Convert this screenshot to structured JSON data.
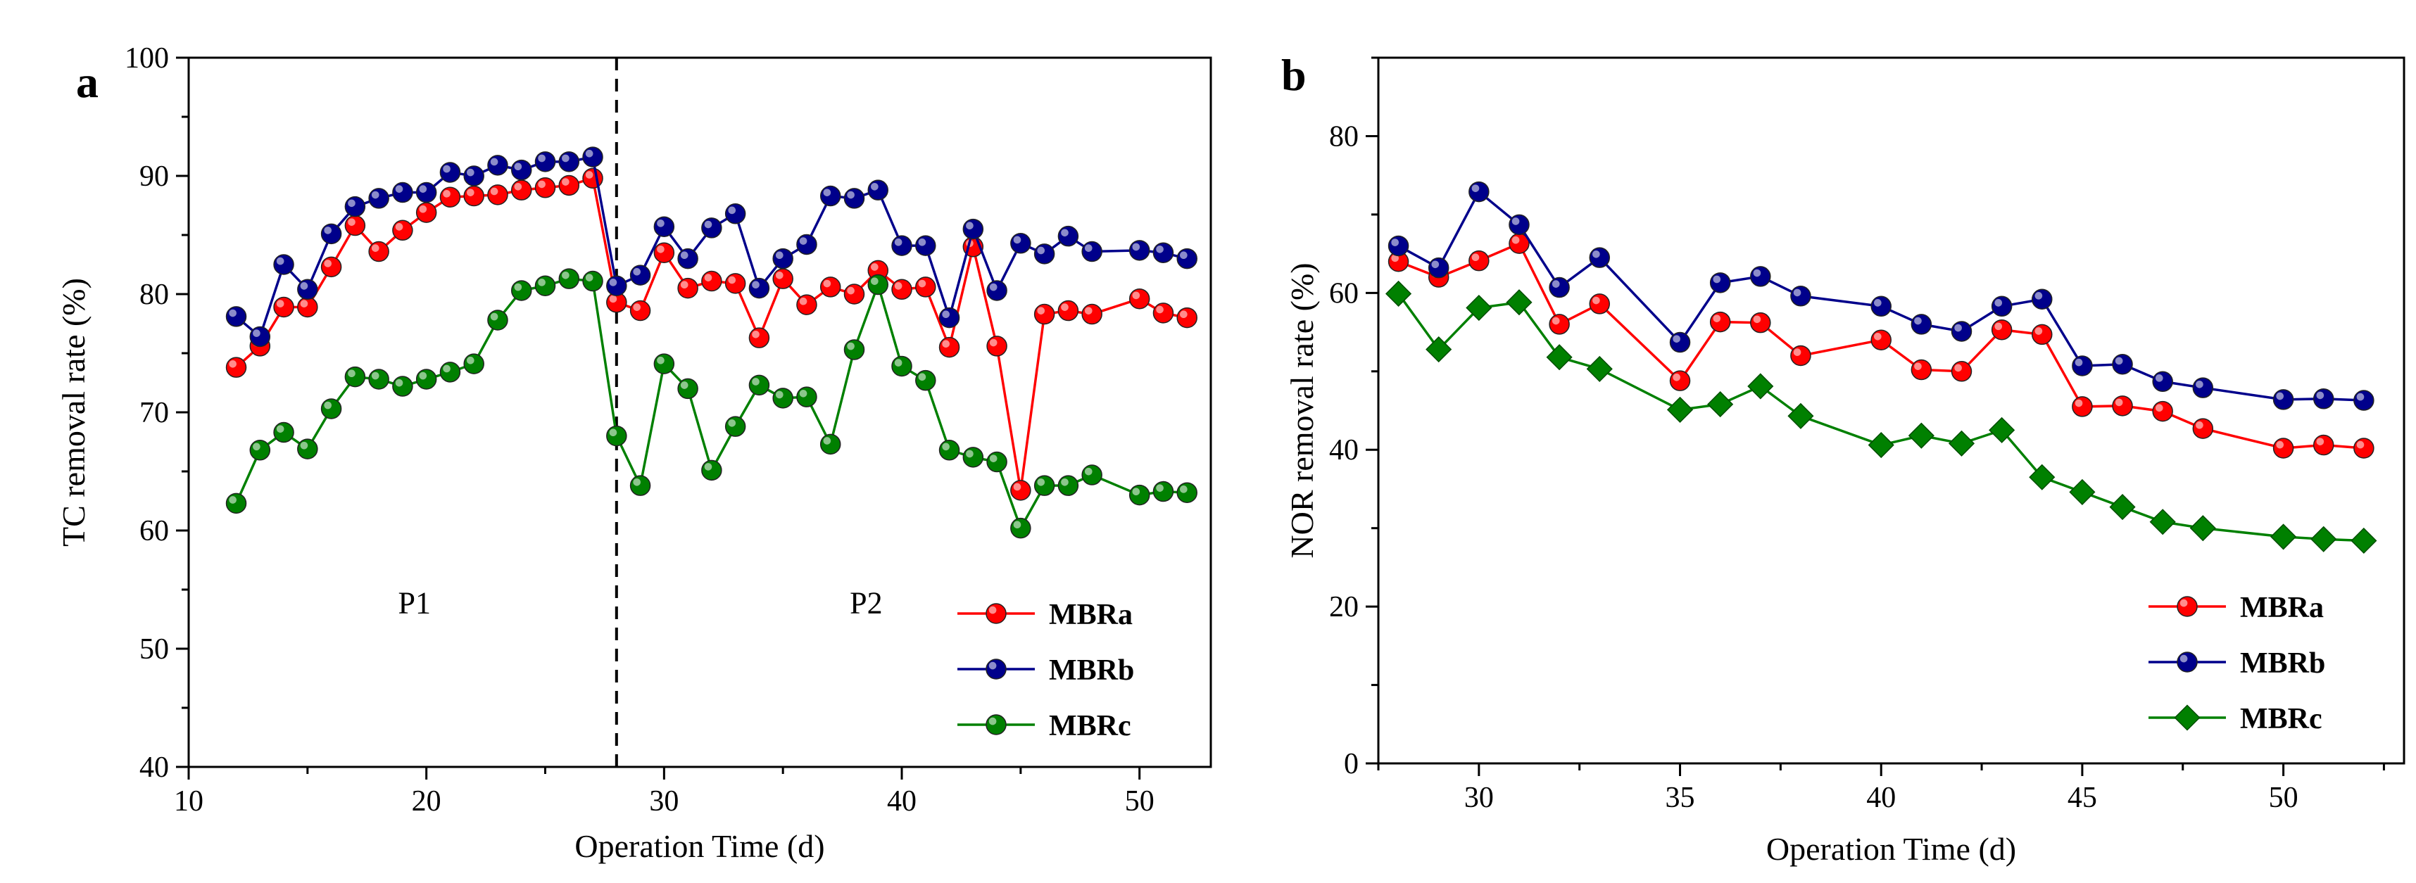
{
  "chart_data": [
    {
      "type": "line",
      "panel_label": "a",
      "xlabel": "Operation Time (d)",
      "ylabel": "TC removal rate (%)",
      "xlim": [
        10,
        53
      ],
      "ylim": [
        40,
        100
      ],
      "xticks": [
        10,
        20,
        30,
        40,
        50
      ],
      "yticks": [
        40,
        50,
        60,
        70,
        80,
        90,
        100
      ],
      "divider_x": 28,
      "phase_labels": [
        {
          "text": "P1",
          "x": 19.5,
          "y": 53
        },
        {
          "text": "P2",
          "x": 38.5,
          "y": 53
        }
      ],
      "legend_position": "bottom-right",
      "x": [
        12,
        13,
        14,
        15,
        16,
        17,
        18,
        19,
        20,
        21,
        22,
        23,
        24,
        25,
        26,
        27,
        28,
        29,
        30,
        31,
        32,
        33,
        34,
        35,
        36,
        37,
        38,
        39,
        40,
        41,
        42,
        43,
        44,
        45,
        46,
        47,
        48,
        50,
        51,
        52
      ],
      "series": [
        {
          "name": "MBRa",
          "color": "#ff0000",
          "marker": "circle",
          "values": [
            73.8,
            75.6,
            78.9,
            78.9,
            82.3,
            85.8,
            83.6,
            85.4,
            86.9,
            88.2,
            88.3,
            88.4,
            88.8,
            89.0,
            89.2,
            89.8,
            79.3,
            78.6,
            83.5,
            80.5,
            81.1,
            80.9,
            76.3,
            81.3,
            79.1,
            80.6,
            80.0,
            82.0,
            80.4,
            80.6,
            75.5,
            84.0,
            75.6,
            63.4,
            78.3,
            78.6,
            78.3,
            79.6,
            78.4,
            78.0
          ]
        },
        {
          "name": "MBRb",
          "color": "#00008b",
          "marker": "circle",
          "values": [
            78.1,
            76.4,
            82.5,
            80.4,
            85.1,
            87.4,
            88.1,
            88.6,
            88.6,
            90.3,
            90.0,
            90.9,
            90.5,
            91.2,
            91.2,
            91.6,
            80.7,
            81.6,
            85.7,
            83.0,
            85.6,
            86.8,
            80.5,
            83.0,
            84.2,
            88.3,
            88.1,
            88.8,
            84.1,
            84.1,
            78.0,
            85.5,
            80.3,
            84.3,
            83.4,
            84.9,
            83.6,
            83.7,
            83.5,
            83.0
          ]
        },
        {
          "name": "MBRc",
          "color": "#008000",
          "marker": "circle",
          "values": [
            62.3,
            66.8,
            68.3,
            66.9,
            70.3,
            73.0,
            72.8,
            72.2,
            72.8,
            73.4,
            74.1,
            77.8,
            80.3,
            80.7,
            81.3,
            81.1,
            68.0,
            63.8,
            74.1,
            72.0,
            65.1,
            68.8,
            72.3,
            71.2,
            71.3,
            67.3,
            75.3,
            80.8,
            73.9,
            72.7,
            66.8,
            66.2,
            65.8,
            60.2,
            63.8,
            63.8,
            64.7,
            63.0,
            63.3,
            63.2
          ]
        }
      ]
    },
    {
      "type": "line",
      "panel_label": "b",
      "xlabel": "Operation Time (d)",
      "ylabel": "NOR removal rate (%)",
      "xlim": [
        27.5,
        53
      ],
      "ylim": [
        0,
        90
      ],
      "xticks": [
        30,
        35,
        40,
        45,
        50
      ],
      "yticks": [
        0,
        20,
        40,
        60,
        80
      ],
      "legend_position": "bottom-right",
      "x": [
        28,
        29,
        30,
        31,
        32,
        33,
        35,
        36,
        37,
        38,
        40,
        41,
        42,
        43,
        44,
        45,
        46,
        47,
        48,
        50,
        51,
        52
      ],
      "series": [
        {
          "name": "MBRa",
          "color": "#ff0000",
          "marker": "circle",
          "values": [
            64.0,
            62.0,
            64.1,
            66.3,
            56.0,
            58.6,
            48.8,
            56.3,
            56.2,
            52.0,
            54.0,
            50.2,
            50.0,
            55.3,
            54.7,
            45.5,
            45.6,
            44.9,
            42.7,
            40.2,
            40.6,
            40.2
          ]
        },
        {
          "name": "MBRb",
          "color": "#00008b",
          "marker": "circle",
          "values": [
            66.0,
            63.2,
            72.9,
            68.7,
            60.7,
            64.5,
            53.7,
            61.3,
            62.1,
            59.6,
            58.3,
            56.0,
            55.1,
            58.3,
            59.2,
            50.7,
            50.9,
            48.7,
            47.9,
            46.4,
            46.5,
            46.3
          ]
        },
        {
          "name": "MBRc",
          "color": "#008000",
          "marker": "diamond",
          "values": [
            59.9,
            52.8,
            58.1,
            58.8,
            51.8,
            50.3,
            45.1,
            45.8,
            48.1,
            44.3,
            40.6,
            41.8,
            40.8,
            42.5,
            36.5,
            34.6,
            32.7,
            30.8,
            30.0,
            28.9,
            28.6,
            28.4
          ]
        }
      ]
    }
  ]
}
